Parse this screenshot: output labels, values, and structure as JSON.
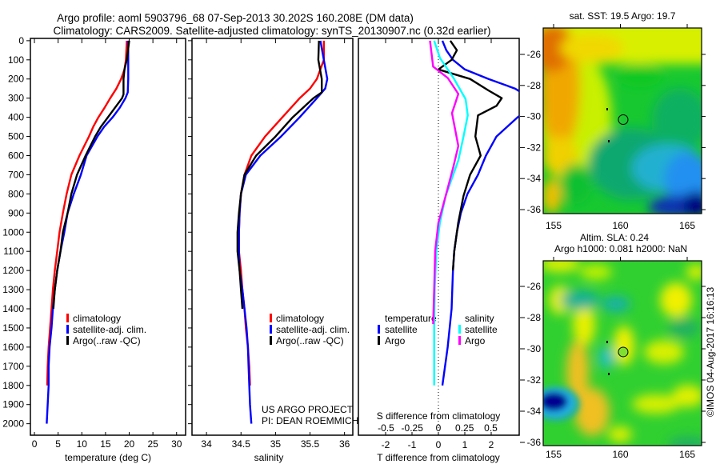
{
  "header": {
    "title_line1": "Argo profile: aoml 5903796_68 07-Sep-2013 30.202S 160.208E (DM data)",
    "title_line2": "Climatology: CARS2009. Satellite-adjusted climatology: synTS_20130907.nc (0.32d earlier)"
  },
  "credits": {
    "project": "US ARGO PROJECT",
    "pi": "PI: DEAN ROEMMICH",
    "stamp": "©IMOS 04-Aug-2017 16:16:13"
  },
  "colors": {
    "climatology": "#ff0000",
    "satellite": "#0000ff",
    "argo": "#000000",
    "sal_satellite": "#00ffff",
    "sal_argo": "#ff00ff"
  },
  "chart_data": [
    {
      "type": "line",
      "xlabel": "temperature (deg C)",
      "ylabel": "",
      "xlim": [
        -0.85,
        31.9
      ],
      "ylim": [
        2060,
        -12
      ],
      "xticks": [
        "0",
        "5",
        "10",
        "15",
        "20",
        "25",
        "30"
      ],
      "xtick_values": [
        0,
        5,
        10,
        15,
        20,
        25,
        30
      ],
      "yticks": [
        "0",
        "100",
        "200",
        "300",
        "400",
        "500",
        "600",
        "700",
        "800",
        "900",
        "1000",
        "1100",
        "1200",
        "1300",
        "1400",
        "1500",
        "1600",
        "1700",
        "1800",
        "1900",
        "2000"
      ],
      "ytick_values": [
        0,
        100,
        200,
        300,
        400,
        500,
        600,
        700,
        800,
        900,
        1000,
        1100,
        1200,
        1300,
        1400,
        1500,
        1600,
        1700,
        1800,
        1900,
        2000
      ],
      "legend": [
        "climatology",
        "satellite-adj. clim.",
        "Argo(..raw -QC)"
      ],
      "series": [
        {
          "name": "climatology",
          "color": "#ff0000",
          "depth": [
            0,
            100,
            150,
            200,
            250,
            300,
            350,
            400,
            450,
            500,
            600,
            700,
            800,
            900,
            1000,
            1100,
            1200,
            1300,
            1400,
            1500,
            1600,
            1700,
            1800
          ],
          "values": [
            19.5,
            19.3,
            19.0,
            18.3,
            17.3,
            16.0,
            14.8,
            13.5,
            12.4,
            11.5,
            9.5,
            7.8,
            6.8,
            6.0,
            5.3,
            4.8,
            4.3,
            3.9,
            3.6,
            3.3,
            3.0,
            2.8,
            2.7
          ]
        },
        {
          "name": "satellite-adj. clim.",
          "color": "#0000ff",
          "depth": [
            0,
            100,
            200,
            270,
            300,
            350,
            400,
            450,
            500,
            600,
            700,
            800,
            900,
            1000,
            1100,
            1200,
            1300,
            1400,
            1500,
            1600,
            1700,
            1800,
            1900,
            2000
          ],
          "values": [
            19.8,
            19.8,
            19.8,
            19.7,
            19.2,
            18.0,
            16.5,
            14.7,
            13.3,
            11.0,
            9.8,
            8.3,
            7.0,
            6.3,
            5.5,
            4.8,
            4.3,
            3.9,
            3.6,
            3.2,
            3.0,
            3.0,
            2.8,
            2.6
          ]
        },
        {
          "name": "Argo(..raw -QC)",
          "color": "#000000",
          "depth": [
            0,
            100,
            150,
            200,
            280,
            300,
            350,
            400,
            450,
            500,
            600,
            700,
            800,
            900,
            1000,
            1100,
            1200,
            1300,
            1400
          ],
          "values": [
            20.0,
            19.5,
            19.0,
            18.8,
            18.8,
            18.5,
            17.0,
            15.5,
            14.0,
            12.8,
            10.8,
            9.0,
            7.8,
            7.0,
            6.0,
            5.5,
            4.8,
            4.3,
            4.0
          ]
        }
      ]
    },
    {
      "type": "line",
      "xlabel": "salinity",
      "xlim": [
        33.79,
        36.12
      ],
      "ylim": [
        2060,
        -12
      ],
      "xticks": [
        "34",
        "34.5",
        "35",
        "35.5",
        "36"
      ],
      "xtick_values": [
        34,
        34.5,
        35,
        35.5,
        36
      ],
      "legend": [
        "climatology",
        "satellite-adj. clim.",
        "Argo(..raw -QC)"
      ],
      "series": [
        {
          "name": "climatology",
          "color": "#ff0000",
          "depth": [
            0,
            100,
            200,
            250,
            300,
            400,
            500,
            600,
            700,
            800,
            900,
            1000,
            1100,
            1200,
            1300,
            1400,
            1500,
            1600,
            1700,
            1800
          ],
          "values": [
            35.7,
            35.7,
            35.6,
            35.5,
            35.35,
            35.1,
            34.85,
            34.65,
            34.55,
            34.5,
            34.48,
            34.47,
            34.47,
            34.5,
            34.52,
            34.55,
            34.57,
            34.6,
            34.62,
            34.63
          ]
        },
        {
          "name": "satellite-adj. clim.",
          "color": "#0000ff",
          "depth": [
            0,
            100,
            200,
            250,
            300,
            400,
            500,
            600,
            700,
            800,
            900,
            1000,
            1100,
            1200,
            1300,
            1400,
            1500,
            1600,
            1700,
            1800,
            1900,
            2000
          ],
          "values": [
            35.65,
            35.7,
            35.75,
            35.72,
            35.6,
            35.35,
            35.08,
            34.78,
            34.57,
            34.5,
            34.48,
            34.47,
            34.47,
            34.48,
            34.52,
            34.55,
            34.58,
            34.6,
            34.61,
            34.62,
            34.63,
            34.65
          ]
        },
        {
          "name": "Argo(..raw -QC)",
          "color": "#000000",
          "depth": [
            0,
            100,
            200,
            270,
            300,
            400,
            500,
            600,
            700,
            800,
            900,
            1000,
            1100,
            1200,
            1300,
            1400
          ],
          "values": [
            35.63,
            35.62,
            35.67,
            35.67,
            35.55,
            35.25,
            35.0,
            34.72,
            34.55,
            34.5,
            34.47,
            34.45,
            34.45,
            34.48,
            34.5,
            34.52
          ]
        }
      ]
    },
    {
      "type": "line",
      "xlabel": "T difference from climatology",
      "xlabel2": "S difference from climatology",
      "xlim": [
        -3.03,
        3.06
      ],
      "xlim2": [
        -0.763,
        0.771
      ],
      "ylim": [
        2060,
        -12
      ],
      "xticks": [
        "-2",
        "-1",
        "0",
        "1",
        "2"
      ],
      "xtick_values": [
        -2,
        -1,
        0,
        1,
        2
      ],
      "xticks2": [
        "-0.5",
        "-0.25",
        "0",
        "0.25",
        "0.5"
      ],
      "xtick_values2": [
        -0.5,
        -0.25,
        0,
        0.25,
        0.5
      ],
      "legend_temperature_title": "temperature",
      "legend_salinity_title": "salinity",
      "legend": [
        "satellite",
        "Argo",
        "satellite",
        "Argo"
      ],
      "series": [
        {
          "name": "T satellite",
          "axis": "T",
          "color": "#0000ff",
          "depth": [
            0,
            50,
            100,
            150,
            200,
            250,
            300,
            350,
            400,
            450,
            500,
            600,
            700,
            800,
            900,
            1000,
            1100,
            1200,
            1400,
            1600,
            1800
          ],
          "values": [
            0.15,
            0.3,
            0.55,
            1.0,
            1.9,
            2.9,
            3.5,
            3.5,
            3.0,
            2.6,
            2.2,
            1.8,
            1.5,
            1.1,
            0.85,
            0.7,
            0.6,
            0.55,
            0.5,
            0.35,
            0.15
          ]
        },
        {
          "name": "T Argo",
          "axis": "T",
          "color": "#000000",
          "depth": [
            0,
            50,
            100,
            150,
            200,
            260,
            300,
            340,
            390,
            500,
            600,
            700,
            810,
            950,
            1100,
            1200
          ],
          "values": [
            0.45,
            0.7,
            0.5,
            0.0,
            1.2,
            1.9,
            2.4,
            2.2,
            1.5,
            1.4,
            1.6,
            1.2,
            0.95,
            0.75,
            0.6,
            0.55
          ]
        },
        {
          "name": "S satellite",
          "axis": "S",
          "color": "#00ffff",
          "depth": [
            0,
            90,
            195,
            305,
            390,
            500,
            625,
            810,
            950,
            1095,
            1300,
            1500,
            1800
          ],
          "values": [
            -0.04,
            0.015,
            0.145,
            0.26,
            0.28,
            0.24,
            0.19,
            0.07,
            0.015,
            -0.02,
            -0.035,
            -0.04,
            -0.04
          ]
        },
        {
          "name": "S Argo",
          "axis": "S",
          "color": "#ff00ff",
          "depth": [
            0,
            90,
            135,
            195,
            278,
            378,
            550,
            665,
            810,
            950,
            1095,
            1300,
            1480
          ],
          "values": [
            -0.08,
            -0.06,
            -0.05,
            0.09,
            0.19,
            0.13,
            0.19,
            0.14,
            0.07,
            0.0,
            -0.03,
            -0.04,
            -0.05
          ]
        }
      ]
    },
    {
      "type": "heatmap",
      "title": "sat. SST: 19.5 Argo: 19.7",
      "xticks": [
        "155",
        "160",
        "165"
      ],
      "xtick_values": [
        155,
        160,
        165
      ],
      "yticks": [
        "-26",
        "-28",
        "-30",
        "-32",
        "-34",
        "-36"
      ],
      "ytick_values": [
        -26,
        -28,
        -30,
        -32,
        -34,
        -36
      ],
      "xlim": [
        154.22,
        166.08
      ],
      "ylim": [
        -24.3,
        -36.26
      ],
      "marker": {
        "lon": 160.208,
        "lat": -30.202
      }
    },
    {
      "type": "heatmap",
      "title": "Altim. SLA: 0.24",
      "subtitle": "Argo h1000: 0.081 h2000: NaN",
      "xticks": [
        "155",
        "160",
        "165"
      ],
      "xtick_values": [
        155,
        160,
        165
      ],
      "yticks": [
        "-26",
        "-28",
        "-30",
        "-32",
        "-34",
        "-36"
      ],
      "ytick_values": [
        -26,
        -28,
        -30,
        -32,
        -34,
        -36
      ],
      "xlim": [
        154.22,
        166.08
      ],
      "ylim": [
        -24.35,
        -36.2
      ],
      "marker": {
        "lon": 160.208,
        "lat": -30.202
      }
    }
  ]
}
